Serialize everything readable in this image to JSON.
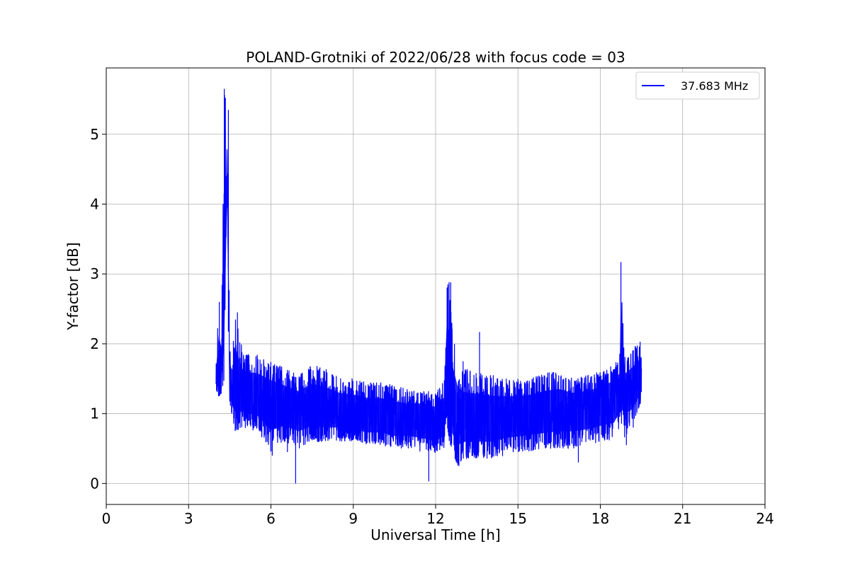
{
  "chart_data": {
    "type": "line",
    "title": "POLAND-Grotniki of 2022/06/28 with focus code = 03",
    "xlabel": "Universal Time [h]",
    "ylabel": "Y-factor [dB]",
    "xlim": [
      0,
      24
    ],
    "ylim": [
      -0.3,
      5.95
    ],
    "xticks": [
      0,
      3,
      6,
      9,
      12,
      15,
      18,
      21,
      24
    ],
    "yticks": [
      0,
      1,
      2,
      3,
      4,
      5
    ],
    "grid": true,
    "legend_position": "top-right",
    "series": [
      {
        "name": "37.683 MHz",
        "color": "#0000ff",
        "envelope": {
          "x": [
            4.0,
            4.1,
            4.2,
            4.3,
            4.4,
            4.5,
            4.6,
            4.7,
            5.0,
            5.5,
            6.0,
            6.5,
            7.0,
            7.5,
            8.0,
            8.5,
            9.0,
            9.5,
            10.0,
            10.5,
            11.0,
            11.5,
            12.0,
            12.3,
            12.4,
            12.5,
            12.6,
            12.8,
            13.0,
            13.5,
            14.0,
            14.5,
            15.0,
            15.5,
            16.0,
            16.5,
            17.0,
            17.5,
            18.0,
            18.5,
            18.7,
            18.75,
            18.8,
            18.9,
            19.0,
            19.2,
            19.5
          ],
          "high": [
            1.75,
            2.6,
            2.2,
            5.65,
            5.5,
            1.95,
            1.9,
            2.45,
            1.85,
            1.85,
            1.75,
            1.65,
            1.55,
            1.7,
            1.65,
            1.5,
            1.5,
            1.45,
            1.45,
            1.4,
            1.35,
            1.35,
            1.3,
            1.5,
            2.8,
            2.9,
            2.3,
            1.8,
            1.65,
            1.6,
            1.55,
            1.5,
            1.5,
            1.5,
            1.6,
            1.6,
            1.5,
            1.55,
            1.6,
            1.7,
            1.8,
            3.15,
            2.5,
            1.85,
            1.85,
            1.95,
            2.05
          ],
          "low": [
            1.3,
            1.25,
            1.3,
            1.3,
            4.8,
            1.15,
            0.95,
            0.75,
            0.8,
            0.75,
            0.45,
            0.6,
            0.5,
            0.6,
            0.6,
            0.6,
            0.6,
            0.55,
            0.55,
            0.5,
            0.5,
            0.45,
            0.4,
            0.5,
            0.9,
            0.6,
            0.5,
            0.25,
            0.35,
            0.35,
            0.35,
            0.4,
            0.45,
            0.45,
            0.5,
            0.5,
            0.5,
            0.55,
            0.6,
            0.6,
            0.8,
            0.9,
            0.8,
            0.55,
            0.8,
            0.85,
            1.2
          ],
          "mid": [
            1.5,
            1.55,
            1.6,
            3.0,
            3.0,
            1.35,
            1.3,
            1.35,
            1.3,
            1.25,
            1.15,
            1.1,
            1.05,
            1.1,
            1.05,
            1.05,
            1.0,
            0.95,
            0.95,
            0.9,
            0.9,
            0.9,
            0.85,
            0.9,
            1.6,
            1.3,
            1.0,
            0.9,
            0.9,
            0.9,
            0.9,
            0.95,
            0.95,
            1.0,
            1.0,
            1.05,
            1.05,
            1.05,
            1.1,
            1.2,
            1.3,
            2.0,
            1.4,
            1.25,
            1.3,
            1.35,
            1.5
          ]
        },
        "spikes": [
          {
            "x": 4.12,
            "y": 2.6
          },
          {
            "x": 4.3,
            "y": 5.65
          },
          {
            "x": 4.45,
            "y": 5.35
          },
          {
            "x": 4.78,
            "y": 2.45
          },
          {
            "x": 6.05,
            "y": 0.4
          },
          {
            "x": 6.6,
            "y": 0.45
          },
          {
            "x": 6.9,
            "y": 0.0
          },
          {
            "x": 11.75,
            "y": 0.03
          },
          {
            "x": 12.45,
            "y": 2.85
          },
          {
            "x": 12.55,
            "y": 2.88
          },
          {
            "x": 12.85,
            "y": 0.25
          },
          {
            "x": 13.0,
            "y": 1.75
          },
          {
            "x": 13.6,
            "y": 2.17
          },
          {
            "x": 14.1,
            "y": 1.55
          },
          {
            "x": 17.2,
            "y": 0.3
          },
          {
            "x": 18.75,
            "y": 3.17
          },
          {
            "x": 18.95,
            "y": 0.55
          },
          {
            "x": 19.2,
            "y": 0.8
          },
          {
            "x": 19.45,
            "y": 2.03
          }
        ]
      }
    ]
  }
}
